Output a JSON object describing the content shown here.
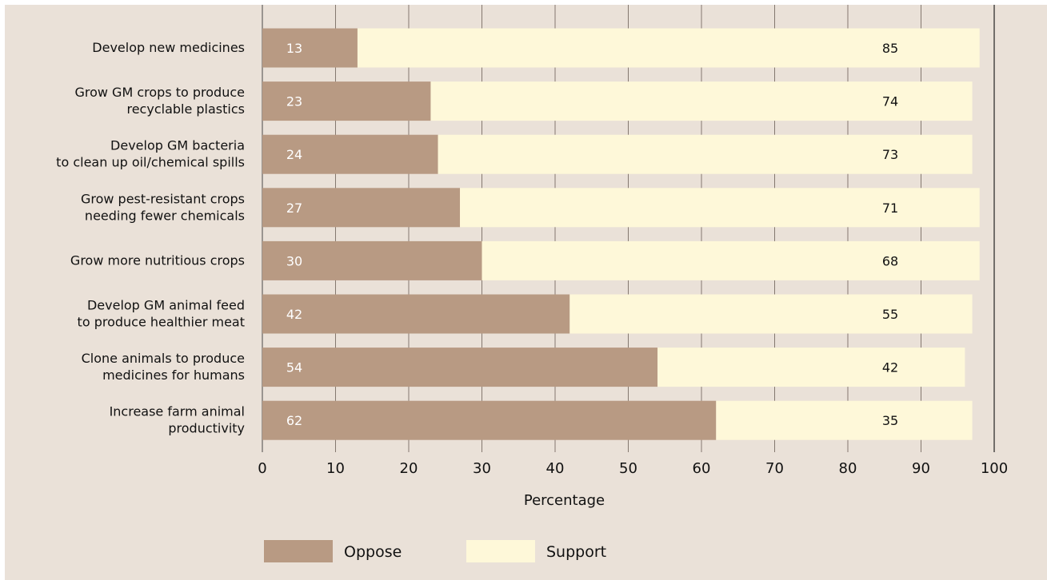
{
  "chart_data": {
    "type": "bar",
    "orientation": "horizontal",
    "stacked": true,
    "categories": [
      [
        "Develop new medicines"
      ],
      [
        "Grow GM crops to produce",
        "recyclable plastics"
      ],
      [
        "Develop GM bacteria",
        "to clean up oil/chemical spills"
      ],
      [
        "Grow pest-resistant crops",
        "needing fewer chemicals"
      ],
      [
        "Grow more nutritious crops"
      ],
      [
        "Develop GM animal feed",
        "to produce healthier meat"
      ],
      [
        "Clone animals to produce",
        "medicines for humans"
      ],
      [
        "Increase farm animal",
        "productivity"
      ]
    ],
    "series": [
      {
        "name": "Oppose",
        "color": "#b89a83",
        "label_color": "#ffffff",
        "values": [
          13,
          23,
          24,
          27,
          30,
          42,
          54,
          62
        ]
      },
      {
        "name": "Support",
        "color": "#fef8d9",
        "label_color": "#111111",
        "values": [
          85,
          74,
          73,
          71,
          68,
          55,
          42,
          35
        ]
      }
    ],
    "xlabel": "Percentage",
    "xlim": [
      0,
      100
    ],
    "xticks": [
      0,
      10,
      20,
      30,
      40,
      50,
      60,
      70,
      80,
      90,
      100
    ],
    "grid": true,
    "legend_position": "bottom",
    "background": "#eae1d8"
  }
}
